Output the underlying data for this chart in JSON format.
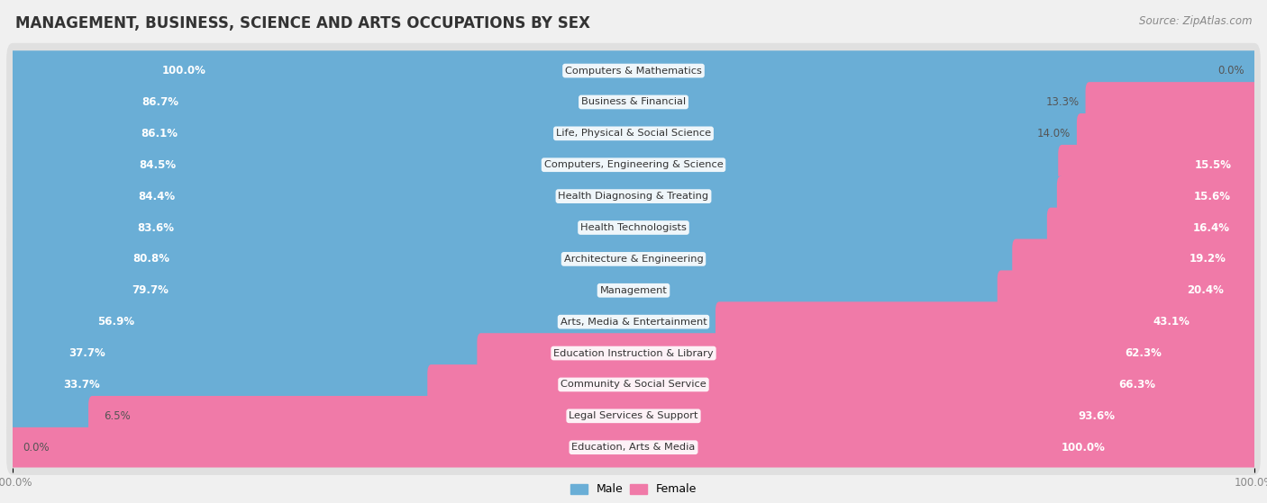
{
  "title": "MANAGEMENT, BUSINESS, SCIENCE AND ARTS OCCUPATIONS BY SEX",
  "source": "Source: ZipAtlas.com",
  "categories": [
    "Computers & Mathematics",
    "Business & Financial",
    "Life, Physical & Social Science",
    "Computers, Engineering & Science",
    "Health Diagnosing & Treating",
    "Health Technologists",
    "Architecture & Engineering",
    "Management",
    "Arts, Media & Entertainment",
    "Education Instruction & Library",
    "Community & Social Service",
    "Legal Services & Support",
    "Education, Arts & Media"
  ],
  "male": [
    100.0,
    86.7,
    86.1,
    84.5,
    84.4,
    83.6,
    80.8,
    79.7,
    56.9,
    37.7,
    33.7,
    6.5,
    0.0
  ],
  "female": [
    0.0,
    13.3,
    14.0,
    15.5,
    15.6,
    16.4,
    19.2,
    20.4,
    43.1,
    62.3,
    66.3,
    93.6,
    100.0
  ],
  "male_color": "#6aaed6",
  "female_color": "#f07aa8",
  "bg_color": "#f0f0f0",
  "row_bg_color": "#e0e0e0",
  "bar_height": 0.68,
  "title_fontsize": 12,
  "label_fontsize": 8.5,
  "tick_fontsize": 8.5,
  "source_fontsize": 8.5
}
